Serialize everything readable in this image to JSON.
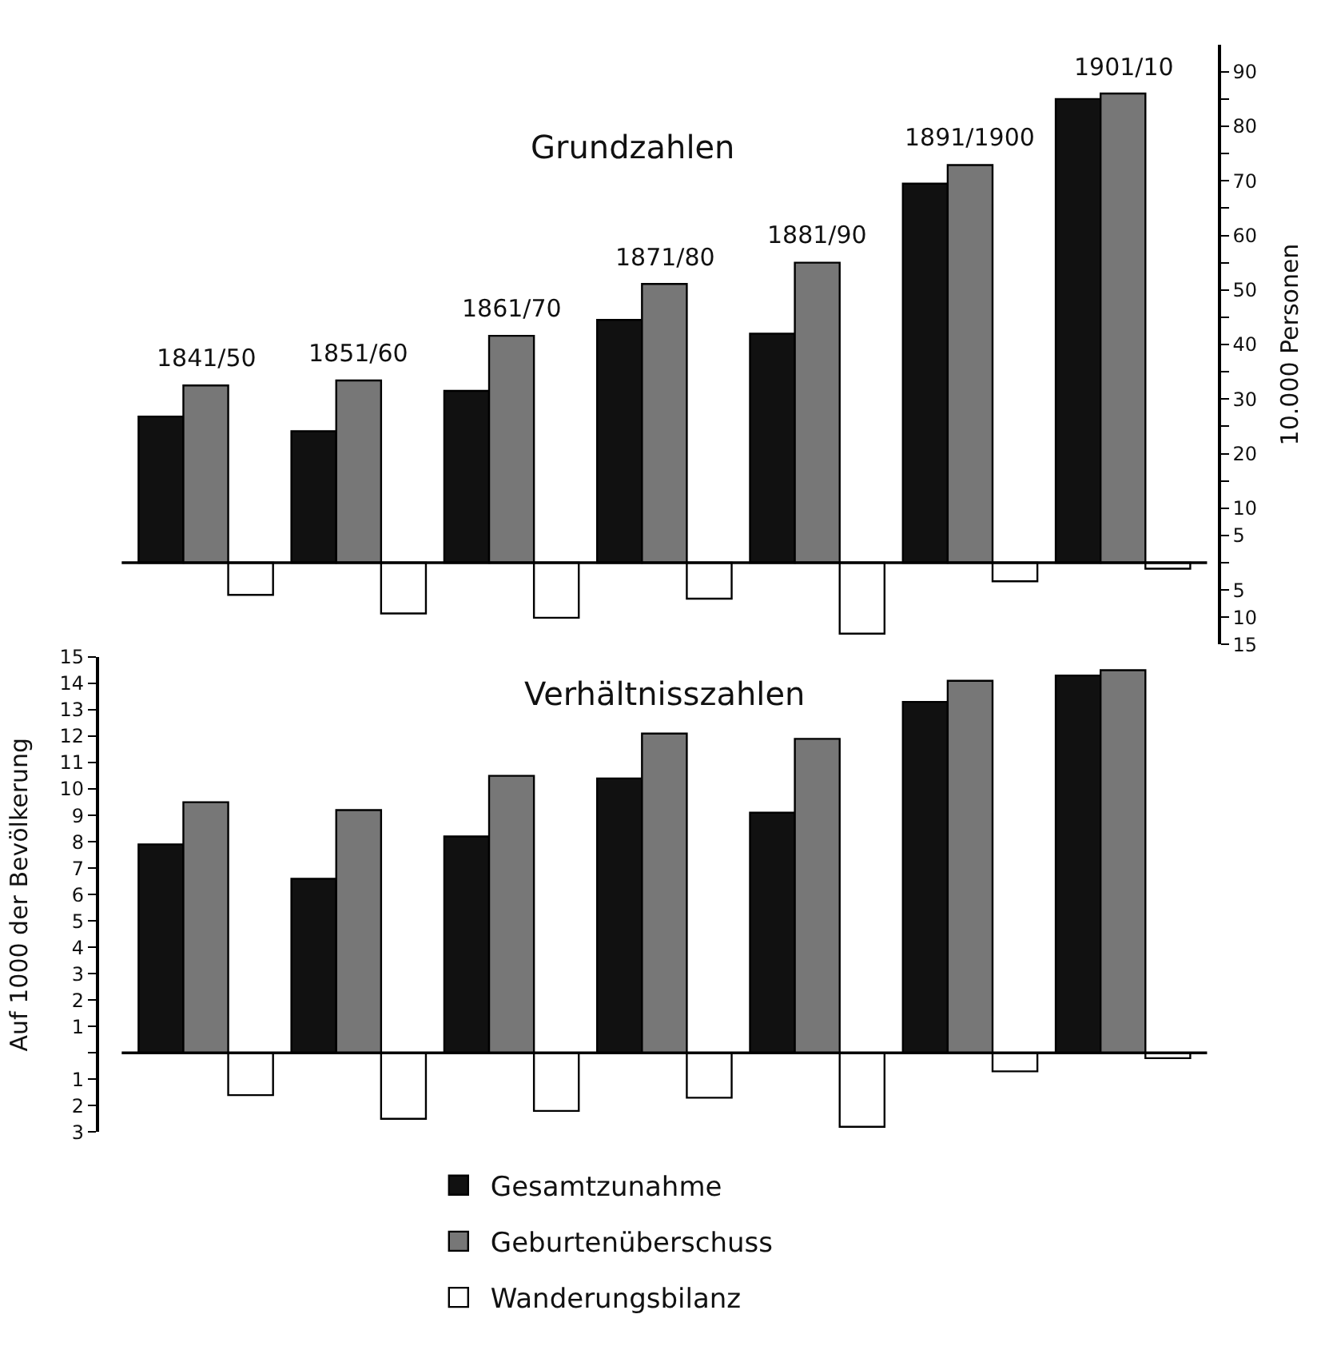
{
  "chart_data": [
    {
      "type": "bar",
      "title": "Grundzahlen",
      "ylabel": "10.000 Personen",
      "categories": [
        "1841/50",
        "1851/60",
        "1861/70",
        "1871/80",
        "1881/90",
        "1891/1900",
        "1901/10"
      ],
      "series": [
        {
          "name": "Gesamtzunahme",
          "color": "#111111",
          "values": [
            26.8,
            24.1,
            31.5,
            44.5,
            42,
            69.5,
            85
          ]
        },
        {
          "name": "Geburtenüberschuss",
          "color": "#777777",
          "values": [
            32.5,
            33.4,
            41.6,
            51.1,
            55,
            72.9,
            86
          ]
        },
        {
          "name": "Wanderungsbilanz",
          "color": "#ffffff",
          "values": [
            -5.9,
            -9.3,
            -10.1,
            -6.6,
            -13,
            -3.4,
            -1.1
          ]
        }
      ],
      "ylim": [
        -15,
        95
      ],
      "yticks": [
        {
          "value": -15,
          "label": "15"
        },
        {
          "value": -10,
          "label": "10"
        },
        {
          "value": -5,
          "label": "5"
        },
        {
          "value": 0,
          "label": null
        },
        5,
        10,
        {
          "value": 15,
          "label": null
        },
        20,
        {
          "value": 25,
          "label": null
        },
        30,
        {
          "value": 35,
          "label": null
        },
        40,
        {
          "value": 45,
          "label": null
        },
        50,
        {
          "value": 55,
          "label": null
        },
        60,
        {
          "value": 65,
          "label": null
        },
        70,
        {
          "value": 75,
          "label": null
        },
        80,
        {
          "value": 85,
          "label": null
        },
        90
      ],
      "ref_lines": [
        {
          "axis": "y",
          "value": 0
        }
      ],
      "legend": "bottom"
    },
    {
      "type": "bar",
      "title": "Verhältnisszahlen",
      "ylabel": "Auf 1000 der Bevölkerung",
      "categories": [
        null,
        null,
        null,
        null,
        null,
        null,
        null
      ],
      "series": [
        {
          "color": "#111111",
          "values": [
            7.9,
            6.6,
            8.2,
            10.4,
            9.1,
            13.3,
            14.3
          ]
        },
        {
          "color": "#777777",
          "values": [
            9.5,
            9.2,
            10.5,
            12.1,
            11.9,
            14.1,
            14.5
          ]
        },
        {
          "color": "#ffffff",
          "values": [
            -1.6,
            -2.5,
            -2.2,
            -1.7,
            -2.8,
            -0.7,
            -0.2
          ]
        }
      ],
      "ylim": [
        -3,
        15
      ],
      "yticks": [
        {
          "value": -3,
          "label": "3"
        },
        {
          "value": -2,
          "label": "2"
        },
        {
          "value": -1,
          "label": "1"
        },
        {
          "value": 0,
          "label": null
        },
        1,
        2,
        3,
        4,
        5,
        6,
        7,
        8,
        9,
        10,
        11,
        12,
        13,
        14,
        15
      ],
      "ref_lines": [
        {
          "axis": "y",
          "value": 0
        }
      ],
      "tick_labels": "y",
      "legend": "bottom"
    }
  ]
}
